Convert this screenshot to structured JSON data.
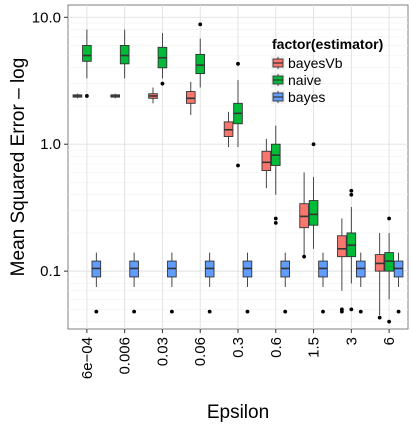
{
  "chart_data": {
    "type": "boxplot",
    "xlabel": "Epsilon",
    "ylabel": "Mean Squared Error – log",
    "y_scale": "log10",
    "ylim": [
      0.035,
      12.5
    ],
    "y_ticks": [
      {
        "value": 10.0,
        "label": "10.0"
      },
      {
        "value": 1.0,
        "label": "1.0"
      },
      {
        "value": 0.1,
        "label": "0.1"
      }
    ],
    "categories": [
      "6e−04",
      "0.006",
      "0.03",
      "0.06",
      "0.3",
      "0.6",
      "1.5",
      "3",
      "6"
    ],
    "grid": true,
    "legend": {
      "title": "factor(estimator)",
      "placement": "top-right",
      "entries": [
        {
          "name": "bayesVb",
          "color": "#F8766D"
        },
        {
          "name": "naive",
          "color": "#00BA38"
        },
        {
          "name": "bayes",
          "color": "#619CFF"
        }
      ]
    },
    "series": [
      {
        "name": "bayesVb",
        "color": "#F8766D",
        "boxes": [
          {
            "min": 2.3,
            "q1": 2.35,
            "median": 2.4,
            "q3": 2.45,
            "max": 2.5,
            "outliers": []
          },
          {
            "min": 2.3,
            "q1": 2.35,
            "median": 2.4,
            "q3": 2.45,
            "max": 2.5,
            "outliers": []
          },
          {
            "min": 2.1,
            "q1": 2.3,
            "median": 2.4,
            "q3": 2.5,
            "max": 2.8,
            "outliers": []
          },
          {
            "min": 1.7,
            "q1": 2.1,
            "median": 2.3,
            "q3": 2.6,
            "max": 3.1,
            "outliers": []
          },
          {
            "min": 0.95,
            "q1": 1.15,
            "median": 1.3,
            "q3": 1.5,
            "max": 1.8,
            "outliers": []
          },
          {
            "min": 0.45,
            "q1": 0.62,
            "median": 0.72,
            "q3": 0.88,
            "max": 1.1,
            "outliers": []
          },
          {
            "min": 0.13,
            "q1": 0.22,
            "median": 0.27,
            "q3": 0.34,
            "max": 0.6,
            "outliers": [
              0.13
            ]
          },
          {
            "min": 0.07,
            "q1": 0.13,
            "median": 0.15,
            "q3": 0.19,
            "max": 0.26,
            "outliers": [
              0.05,
              0.048
            ]
          },
          {
            "min": 0.045,
            "q1": 0.1,
            "median": 0.115,
            "q3": 0.135,
            "max": 0.2,
            "outliers": [
              0.043
            ]
          }
        ]
      },
      {
        "name": "naive",
        "color": "#00BA38",
        "boxes": [
          {
            "min": 3.3,
            "q1": 4.5,
            "median": 5.0,
            "q3": 6.0,
            "max": 8.0,
            "outliers": [
              2.4
            ]
          },
          {
            "min": 3.3,
            "q1": 4.3,
            "median": 5.0,
            "q3": 6.0,
            "max": 8.0,
            "outliers": []
          },
          {
            "min": 3.3,
            "q1": 4.0,
            "median": 4.8,
            "q3": 5.8,
            "max": 7.5,
            "outliers": [
              3.0
            ]
          },
          {
            "min": 2.8,
            "q1": 3.6,
            "median": 4.2,
            "q3": 5.1,
            "max": 6.8,
            "outliers": [
              8.8
            ]
          },
          {
            "min": 0.95,
            "q1": 1.45,
            "median": 1.75,
            "q3": 2.1,
            "max": 3.2,
            "outliers": [
              0.68,
              4.3
            ]
          },
          {
            "min": 0.4,
            "q1": 0.68,
            "median": 0.82,
            "q3": 1.0,
            "max": 1.4,
            "outliers": [
              0.26,
              0.24
            ]
          },
          {
            "min": 0.15,
            "q1": 0.23,
            "median": 0.28,
            "q3": 0.36,
            "max": 0.55,
            "outliers": [
              1.0
            ]
          },
          {
            "min": 0.08,
            "q1": 0.13,
            "median": 0.16,
            "q3": 0.2,
            "max": 0.32,
            "outliers": [
              0.43,
              0.4,
              0.05
            ]
          },
          {
            "min": 0.06,
            "q1": 0.1,
            "median": 0.12,
            "q3": 0.14,
            "max": 0.2,
            "outliers": [
              0.26,
              0.04
            ]
          }
        ]
      },
      {
        "name": "bayes",
        "color": "#619CFF",
        "boxes": [
          {
            "min": 0.075,
            "q1": 0.09,
            "median": 0.105,
            "q3": 0.12,
            "max": 0.14,
            "outliers": [
              0.048
            ]
          },
          {
            "min": 0.075,
            "q1": 0.09,
            "median": 0.105,
            "q3": 0.12,
            "max": 0.14,
            "outliers": [
              0.048
            ]
          },
          {
            "min": 0.075,
            "q1": 0.09,
            "median": 0.105,
            "q3": 0.12,
            "max": 0.14,
            "outliers": [
              0.048
            ]
          },
          {
            "min": 0.075,
            "q1": 0.09,
            "median": 0.105,
            "q3": 0.12,
            "max": 0.14,
            "outliers": [
              0.048
            ]
          },
          {
            "min": 0.075,
            "q1": 0.09,
            "median": 0.105,
            "q3": 0.12,
            "max": 0.14,
            "outliers": [
              0.048
            ]
          },
          {
            "min": 0.075,
            "q1": 0.09,
            "median": 0.105,
            "q3": 0.12,
            "max": 0.14,
            "outliers": [
              0.048
            ]
          },
          {
            "min": 0.075,
            "q1": 0.09,
            "median": 0.105,
            "q3": 0.12,
            "max": 0.14,
            "outliers": [
              0.048
            ]
          },
          {
            "min": 0.075,
            "q1": 0.09,
            "median": 0.105,
            "q3": 0.12,
            "max": 0.14,
            "outliers": [
              0.048
            ]
          },
          {
            "min": 0.075,
            "q1": 0.09,
            "median": 0.105,
            "q3": 0.12,
            "max": 0.14,
            "outliers": [
              0.048
            ]
          }
        ]
      }
    ]
  }
}
